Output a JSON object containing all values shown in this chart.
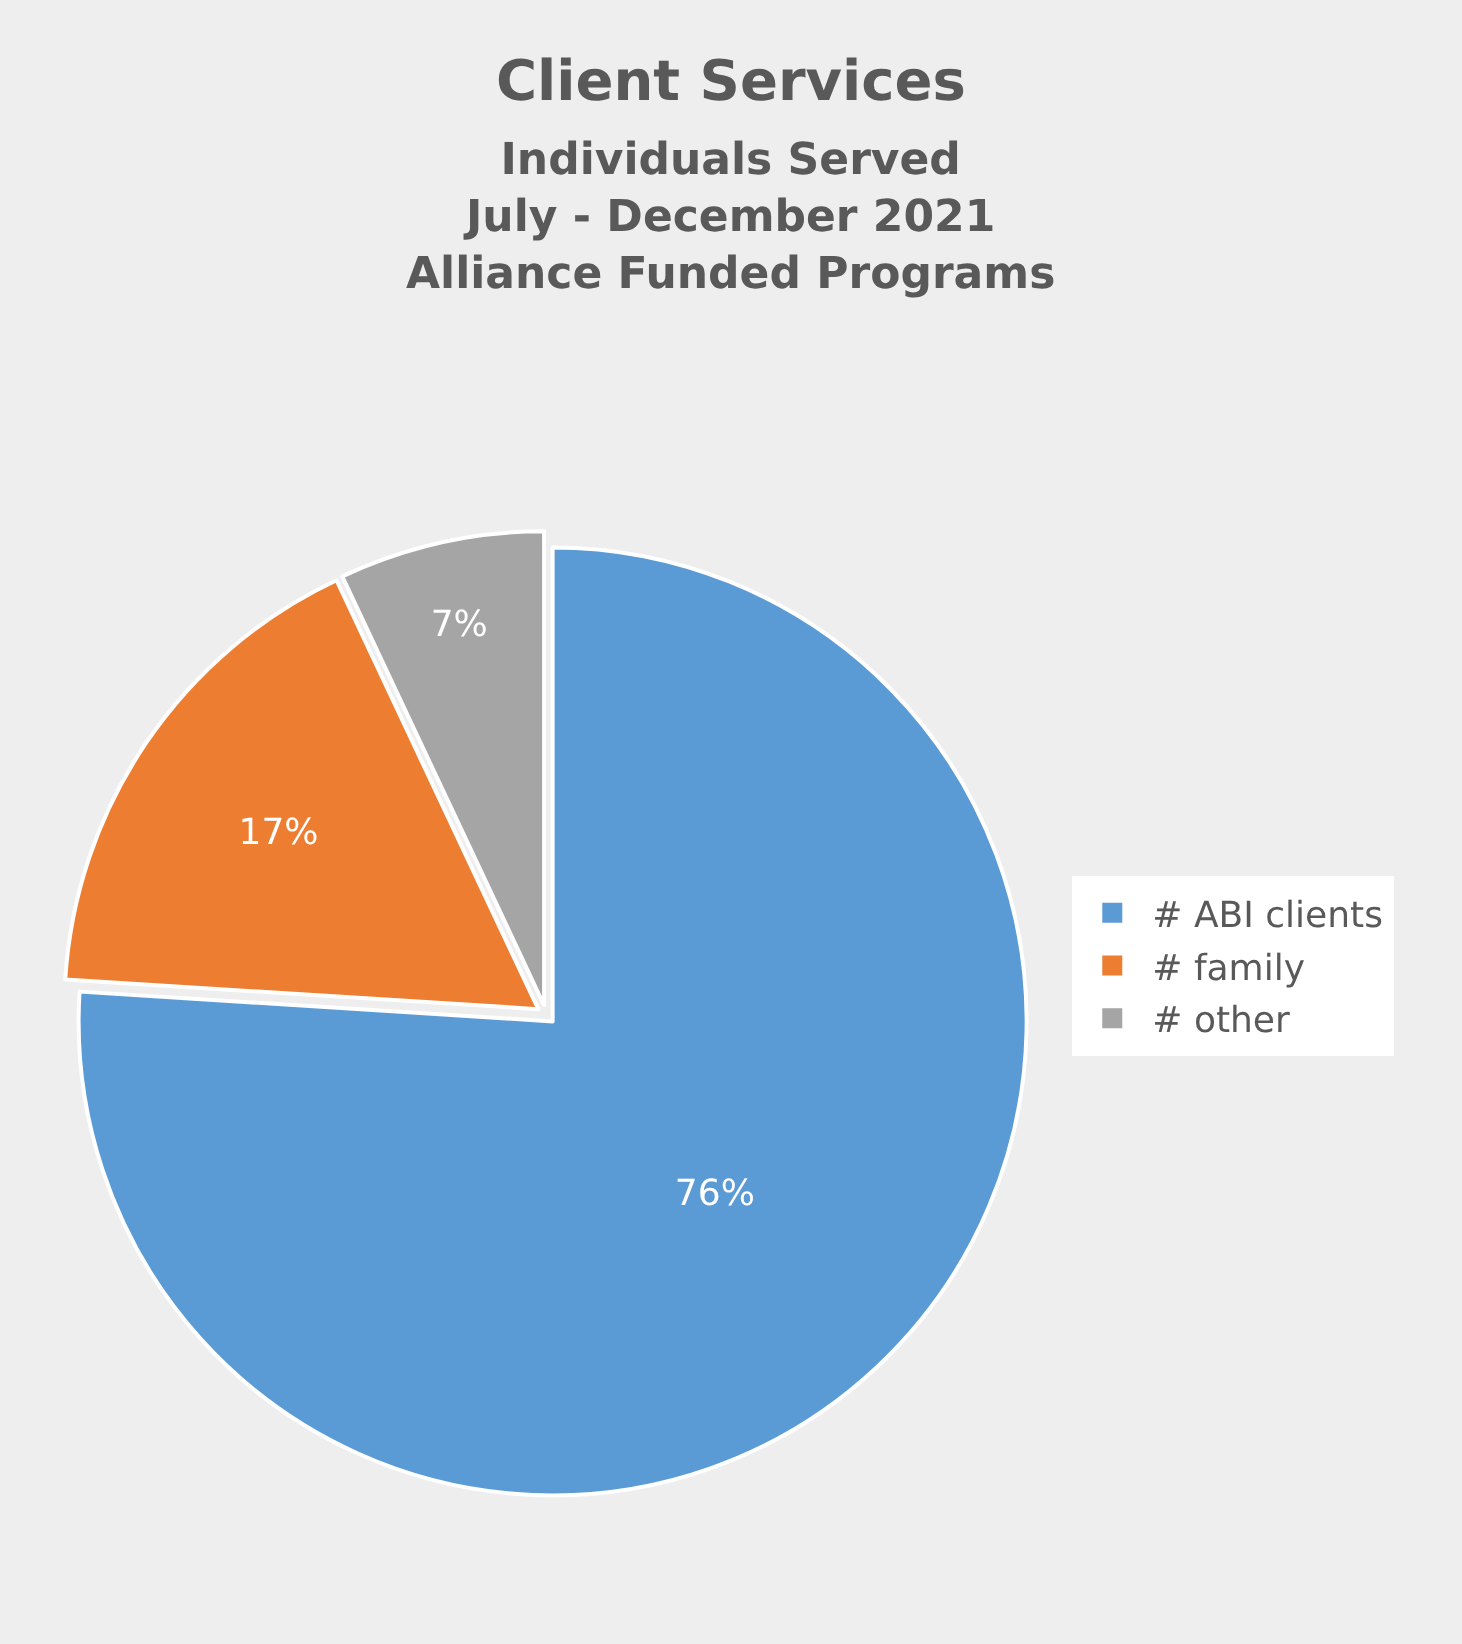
{
  "chart_data": {
    "type": "pie",
    "title": "Client Services",
    "subtitle": "Individuals Served\nJuly - December 2021\nAlliance Funded Programs",
    "categories": [
      "# ABI clients",
      "# family",
      "# other"
    ],
    "values": [
      76,
      17,
      7
    ],
    "colors": [
      "#5b9bd5",
      "#ed7d31",
      "#a5a5a5"
    ],
    "value_labels": [
      "76%",
      "17%",
      "7%"
    ],
    "legend": "right"
  }
}
